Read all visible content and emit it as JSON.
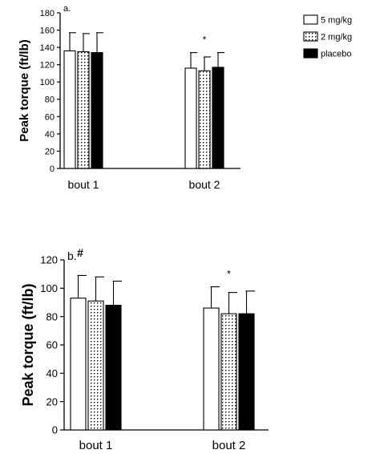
{
  "legend": {
    "items": [
      {
        "label": "5 mg/kg",
        "style": "open"
      },
      {
        "label": "2 mg/kg",
        "style": "dotted"
      },
      {
        "label": "placebo",
        "style": "solid"
      }
    ]
  },
  "chart_data": [
    {
      "type": "bar",
      "panel_label": "a.",
      "ylabel": "Peak torque (ft/lb)",
      "ylim": [
        0,
        180
      ],
      "yticks": [
        0,
        20,
        40,
        60,
        80,
        100,
        120,
        140,
        160,
        180
      ],
      "categories": [
        "bout 1",
        "bout 2"
      ],
      "series": [
        {
          "name": "5 mg/kg",
          "style": "open",
          "values": [
            136,
            116
          ],
          "errors": [
            21,
            18
          ]
        },
        {
          "name": "2 mg/kg",
          "style": "dotted",
          "values": [
            135,
            113
          ],
          "errors": [
            21,
            16
          ]
        },
        {
          "name": "placebo",
          "style": "solid",
          "values": [
            134,
            117
          ],
          "errors": [
            23,
            17
          ]
        }
      ],
      "annotations": [
        {
          "text": "*",
          "category": "bout 2"
        }
      ],
      "grid": false,
      "legend_position": "top-right"
    },
    {
      "type": "bar",
      "panel_label": "b.",
      "ylabel": "Peak torque (ft/lb)",
      "ylim": [
        0,
        120
      ],
      "yticks": [
        0,
        20,
        40,
        60,
        80,
        100,
        120
      ],
      "categories": [
        "bout 1",
        "bout 2"
      ],
      "series": [
        {
          "name": "5 mg/kg",
          "style": "open",
          "values": [
            93,
            86
          ],
          "errors": [
            16,
            15
          ]
        },
        {
          "name": "2 mg/kg",
          "style": "dotted",
          "values": [
            91,
            82
          ],
          "errors": [
            17,
            15
          ]
        },
        {
          "name": "placebo",
          "style": "solid",
          "values": [
            88,
            82
          ],
          "errors": [
            17,
            16
          ]
        }
      ],
      "annotations": [
        {
          "text": "#",
          "category": "bout 1"
        },
        {
          "text": "*",
          "category": "bout 2"
        }
      ],
      "grid": false
    }
  ]
}
